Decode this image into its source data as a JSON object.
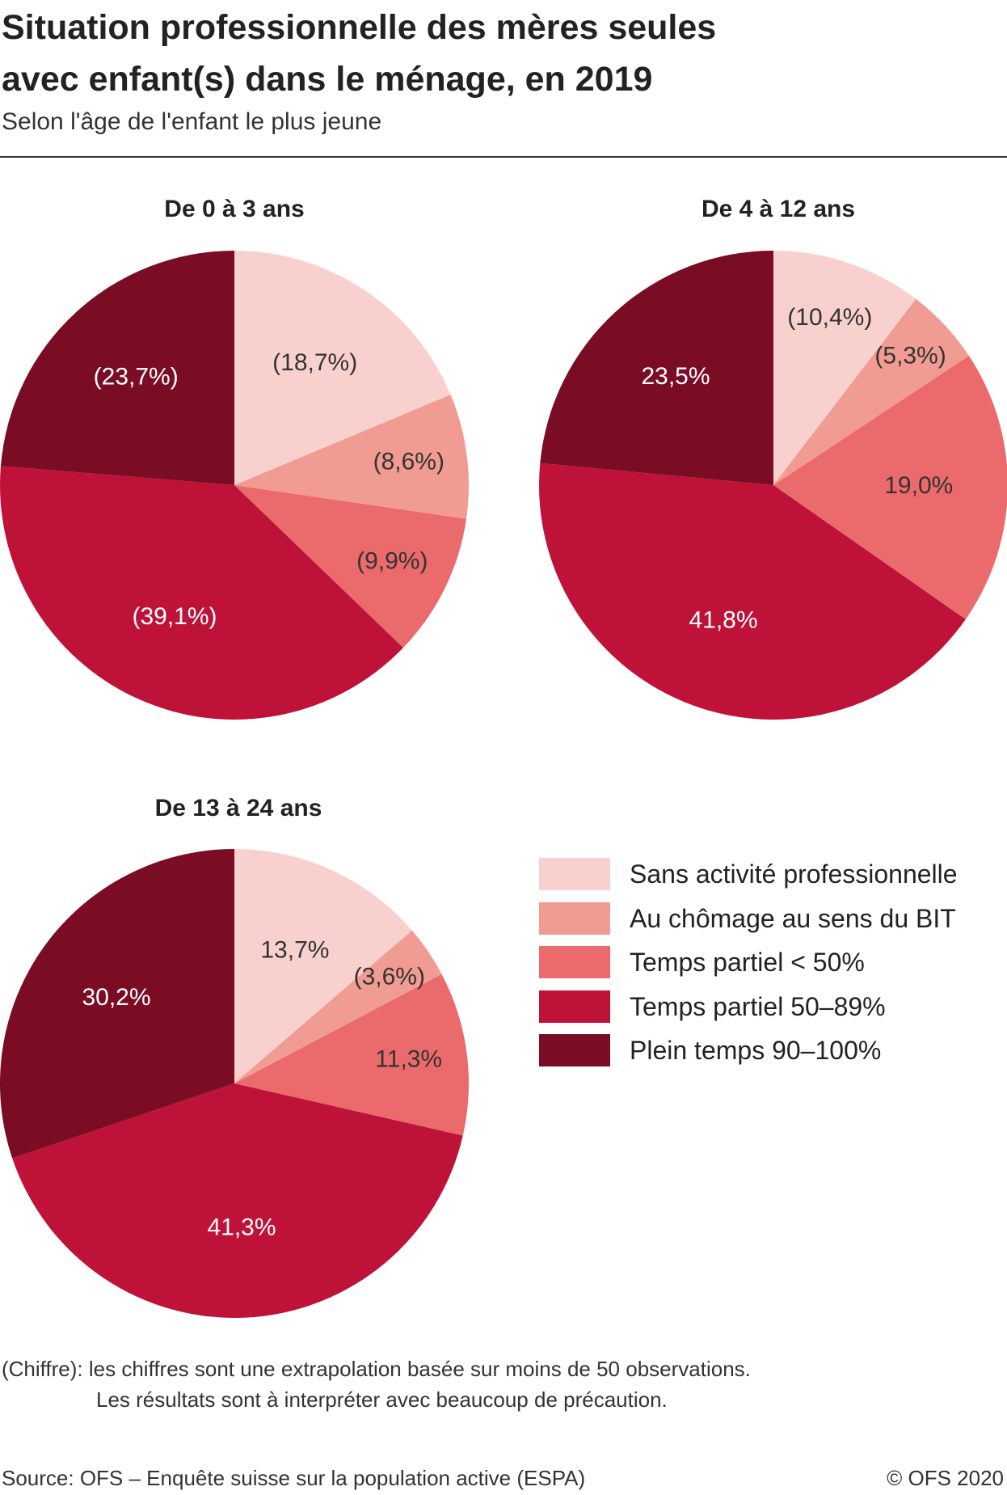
{
  "title": {
    "line1": "Situation professionnelle des mères seules",
    "line2": "avec enfant(s) dans le ménage, en 2019"
  },
  "subtitle": "Selon l'âge de l'enfant le plus jeune",
  "legend": [
    {
      "label": "Sans activité professionnelle",
      "color": "#F8D1CE"
    },
    {
      "label": "Au chômage au sens du BIT",
      "color": "#F19C92"
    },
    {
      "label": "Temps partiel < 50%",
      "color": "#EB6A6B"
    },
    {
      "label": "Temps partiel 50–89%",
      "color": "#BE1239"
    },
    {
      "label": "Plein temps 90–100%",
      "color": "#7A0C24"
    }
  ],
  "chart_data": [
    {
      "type": "pie",
      "title": "De 0 à 3 ans",
      "categories": [
        "Sans activité professionnelle",
        "Au chômage au sens du BIT",
        "Temps partiel < 50%",
        "Temps partiel 50–89%",
        "Plein temps 90–100%"
      ],
      "values": [
        18.7,
        8.6,
        9.9,
        39.1,
        23.7
      ],
      "labels": [
        "(18,7%)",
        "(8,6%)",
        "(9,9%)",
        "(39,1%)",
        "(23,7%)"
      ],
      "colors": [
        "#F8D1CE",
        "#F19C92",
        "#EB6A6B",
        "#BE1239",
        "#7A0C24"
      ]
    },
    {
      "type": "pie",
      "title": "De 4 à 12 ans",
      "categories": [
        "Sans activité professionnelle",
        "Au chômage au sens du BIT",
        "Temps partiel < 50%",
        "Temps partiel 50–89%",
        "Plein temps 90–100%"
      ],
      "values": [
        10.4,
        5.3,
        19.0,
        41.8,
        23.5
      ],
      "labels": [
        "(10,4%)",
        "(5,3%)",
        "19,0%",
        "41,8%",
        "23,5%"
      ],
      "colors": [
        "#F8D1CE",
        "#F19C92",
        "#EB6A6B",
        "#BE1239",
        "#7A0C24"
      ]
    },
    {
      "type": "pie",
      "title": "De 13 à 24 ans",
      "categories": [
        "Sans activité professionnelle",
        "Au chômage au sens du BIT",
        "Temps partiel < 50%",
        "Temps partiel 50–89%",
        "Plein temps 90–100%"
      ],
      "values": [
        13.7,
        3.6,
        11.3,
        41.3,
        30.2
      ],
      "labels": [
        "13,7%",
        "(3,6%)",
        "11,3%",
        "41,3%",
        "30,2%"
      ],
      "colors": [
        "#F8D1CE",
        "#F19C92",
        "#EB6A6B",
        "#BE1239",
        "#7A0C24"
      ]
    }
  ],
  "footnote": {
    "line1": "(Chiffre): les chiffres sont une extrapolation basée sur moins de 50 observations.",
    "line2": "Les résultats sont à interpréter avec beaucoup de précaution."
  },
  "source": "Source: OFS – Enquête suisse sur la population active (ESPA)",
  "copyright": "© OFS 2020"
}
